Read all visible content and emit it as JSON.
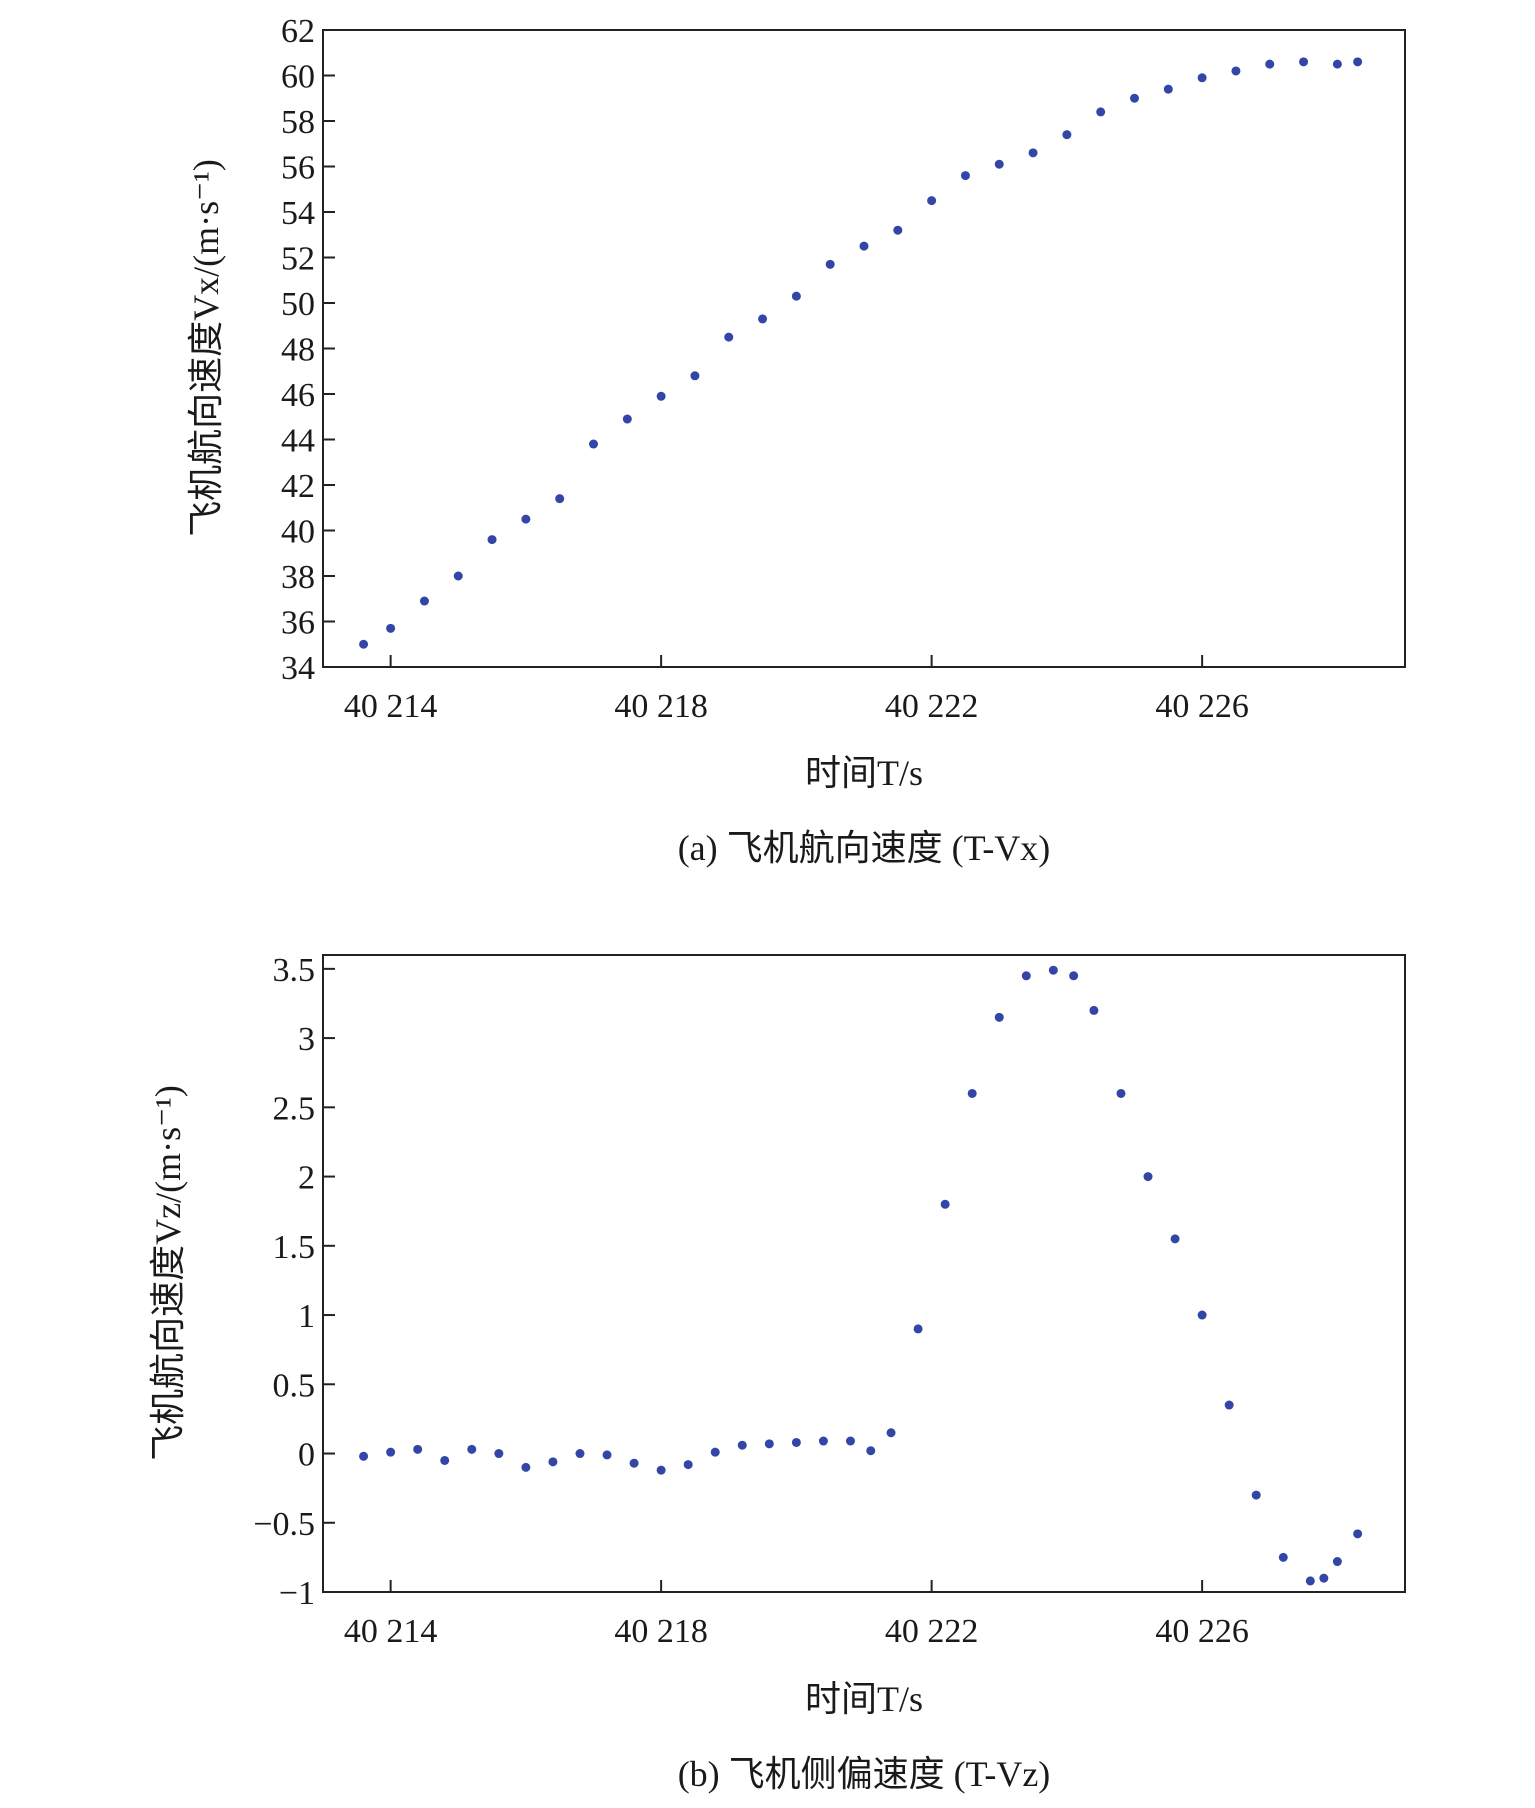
{
  "chart_data": [
    {
      "type": "scatter",
      "caption": "(a) 飞机航向速度 (T-Vx)",
      "xlabel": "时间T/s",
      "ylabel": "飞机航向速度Vx/(m·s⁻¹)",
      "xlim": [
        40213,
        40229
      ],
      "ylim": [
        34,
        62
      ],
      "x_ticks": [
        40214,
        40218,
        40222,
        40226
      ],
      "x_tick_labels": [
        "40 214",
        "40 218",
        "40 222",
        "40 226"
      ],
      "y_ticks": [
        34,
        36,
        38,
        40,
        42,
        44,
        46,
        48,
        50,
        52,
        54,
        56,
        58,
        60,
        62
      ],
      "y_tick_labels": [
        "34",
        "36",
        "38",
        "40",
        "42",
        "44",
        "46",
        "48",
        "50",
        "52",
        "54",
        "56",
        "58",
        "60",
        "62"
      ],
      "grid": false,
      "color": "#3346a8",
      "series": [
        {
          "x": [
            40213.6,
            40214.0,
            40214.5,
            40215.0,
            40215.5,
            40216.0,
            40216.5,
            40217.0,
            40217.5,
            40218.0,
            40218.5,
            40219.0,
            40219.5,
            40220.0,
            40220.5,
            40221.0,
            40221.5,
            40222.0,
            40222.5,
            40223.0,
            40223.5,
            40224.0,
            40224.5,
            40225.0,
            40225.5,
            40226.0,
            40226.5,
            40227.0,
            40227.5,
            40228.0,
            40228.3
          ],
          "y": [
            35.0,
            35.7,
            36.9,
            38.0,
            39.6,
            40.5,
            41.4,
            43.8,
            44.9,
            45.9,
            46.8,
            48.5,
            49.3,
            50.3,
            51.7,
            52.5,
            53.2,
            54.5,
            55.6,
            56.1,
            56.6,
            57.4,
            58.4,
            59.0,
            59.4,
            59.9,
            60.2,
            60.5,
            60.6,
            60.5,
            60.6
          ]
        }
      ]
    },
    {
      "type": "scatter",
      "caption": "(b) 飞机侧偏速度 (T-Vz)",
      "xlabel": "时间T/s",
      "ylabel": "飞机航向速度Vz/(m·s⁻¹)",
      "xlim": [
        40213,
        40229
      ],
      "ylim": [
        -1,
        3.6
      ],
      "x_ticks": [
        40214,
        40218,
        40222,
        40226
      ],
      "x_tick_labels": [
        "40 214",
        "40 218",
        "40 222",
        "40 226"
      ],
      "y_ticks": [
        -1,
        -0.5,
        0,
        0.5,
        1,
        1.5,
        2,
        2.5,
        3,
        3.5
      ],
      "y_tick_labels": [
        "−1",
        "−0.5",
        "0",
        "0.5",
        "1",
        "1.5",
        "2",
        "2.5",
        "3",
        "3.5"
      ],
      "grid": false,
      "color": "#3346a8",
      "series": [
        {
          "x": [
            40213.6,
            40214.0,
            40214.4,
            40214.8,
            40215.2,
            40215.6,
            40216.0,
            40216.4,
            40216.8,
            40217.2,
            40217.6,
            40218.0,
            40218.4,
            40218.8,
            40219.2,
            40219.6,
            40220.0,
            40220.4,
            40220.8,
            40221.1,
            40221.4,
            40221.8,
            40222.2,
            40222.6,
            40223.0,
            40223.4,
            40223.8,
            40224.1,
            40224.4,
            40224.8,
            40225.2,
            40225.6,
            40226.0,
            40226.4,
            40226.8,
            40227.2,
            40227.6,
            40227.8,
            40228.0,
            40228.3
          ],
          "y": [
            -0.02,
            0.01,
            0.03,
            -0.05,
            0.03,
            0.0,
            -0.1,
            -0.06,
            0.0,
            -0.01,
            -0.07,
            -0.12,
            -0.08,
            0.01,
            0.06,
            0.07,
            0.08,
            0.09,
            0.09,
            0.02,
            0.15,
            0.9,
            1.8,
            2.6,
            3.15,
            3.45,
            3.49,
            3.45,
            3.2,
            2.6,
            2.0,
            1.55,
            1.0,
            0.35,
            -0.3,
            -0.75,
            -0.92,
            -0.9,
            -0.78,
            -0.58
          ]
        }
      ]
    }
  ]
}
